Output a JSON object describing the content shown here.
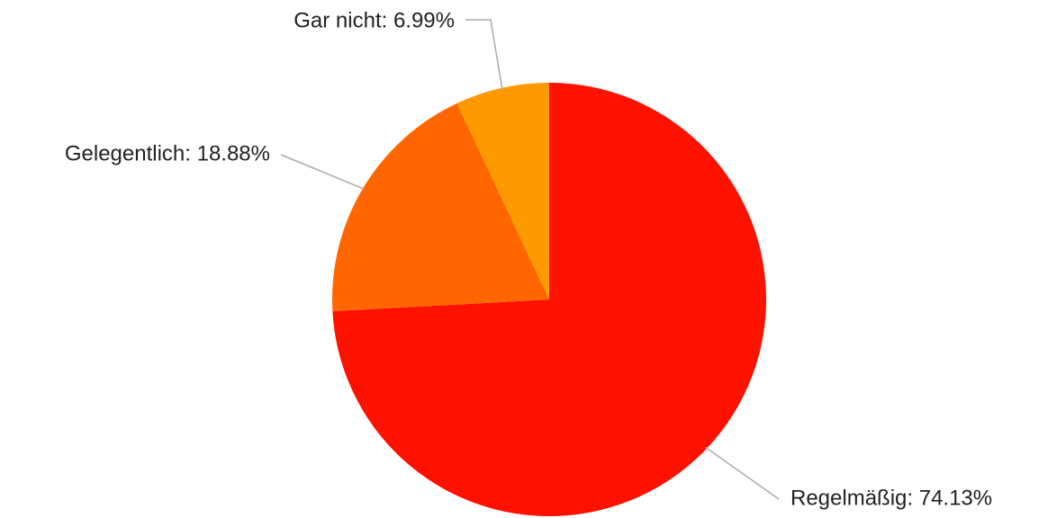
{
  "chart_data": {
    "type": "pie",
    "labels": [
      "Regelmäßig: 74.13%",
      "Gelegentlich: 18.88%",
      "Gar nicht: 6.99%"
    ],
    "values": [
      74.13,
      18.88,
      6.99
    ],
    "colors": [
      "#ff1100",
      "#ff6600",
      "#ff9900"
    ]
  }
}
